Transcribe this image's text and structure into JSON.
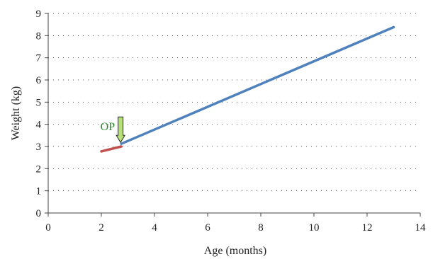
{
  "chart_data": {
    "type": "line",
    "title": "",
    "xlabel": "Age (months)",
    "ylabel": "Weight (kg)",
    "xlim": [
      0,
      14
    ],
    "ylim": [
      0,
      9
    ],
    "xticks": [
      0,
      2,
      4,
      6,
      8,
      10,
      12,
      14
    ],
    "yticks": [
      0,
      1,
      2,
      3,
      4,
      5,
      6,
      7,
      8,
      9
    ],
    "grid": "horizontal dotted",
    "legend": "none",
    "series": [
      {
        "color": "#c0504d",
        "points": [
          [
            2.0,
            2.78
          ],
          [
            2.75,
            3.0
          ]
        ]
      },
      {
        "color": "#4f81bd",
        "points": [
          [
            2.75,
            3.12
          ],
          [
            13.0,
            8.38
          ]
        ]
      }
    ],
    "annotations": [
      {
        "text": "OP",
        "x": 2.75,
        "y": 3.12,
        "marker": "arrow-down",
        "color": "#2e8b2e"
      }
    ]
  }
}
